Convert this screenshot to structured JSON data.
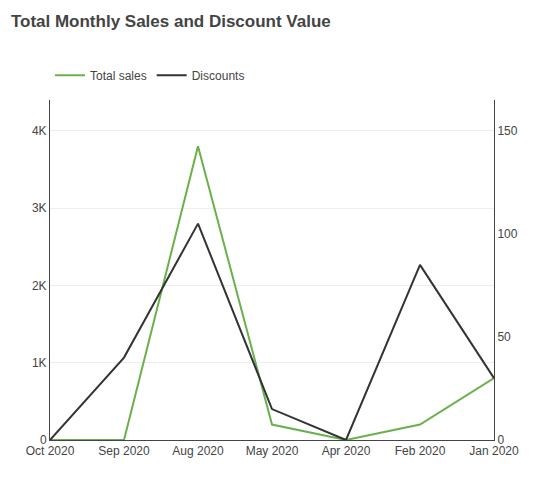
{
  "chart_data": {
    "type": "line",
    "title": "Total Monthly Sales and Discount Value",
    "categories": [
      "Oct 2020",
      "Sep 2020",
      "Aug 2020",
      "May 2020",
      "Apr 2020",
      "Feb 2020",
      "Jan 2020"
    ],
    "series": [
      {
        "name": "Total sales",
        "color": "#6ab04c",
        "values": [
          0,
          0,
          3800,
          200,
          0,
          200,
          800
        ]
      },
      {
        "name": "Discounts",
        "color": "#333333",
        "axis": "y2",
        "values": [
          0,
          40,
          105,
          15,
          0,
          85,
          30
        ]
      }
    ],
    "ylim": [
      0,
      4400
    ],
    "yticks": [
      0,
      {
        "value": 1000,
        "label": "1K"
      },
      {
        "value": 2000,
        "label": "2K"
      },
      {
        "value": 3000,
        "label": "3K"
      },
      {
        "value": 4000,
        "label": "4K"
      }
    ],
    "y2lim": [
      0,
      165
    ],
    "y2ticks": [
      0,
      50,
      100,
      150
    ],
    "grid": true,
    "legend": "upper left"
  }
}
